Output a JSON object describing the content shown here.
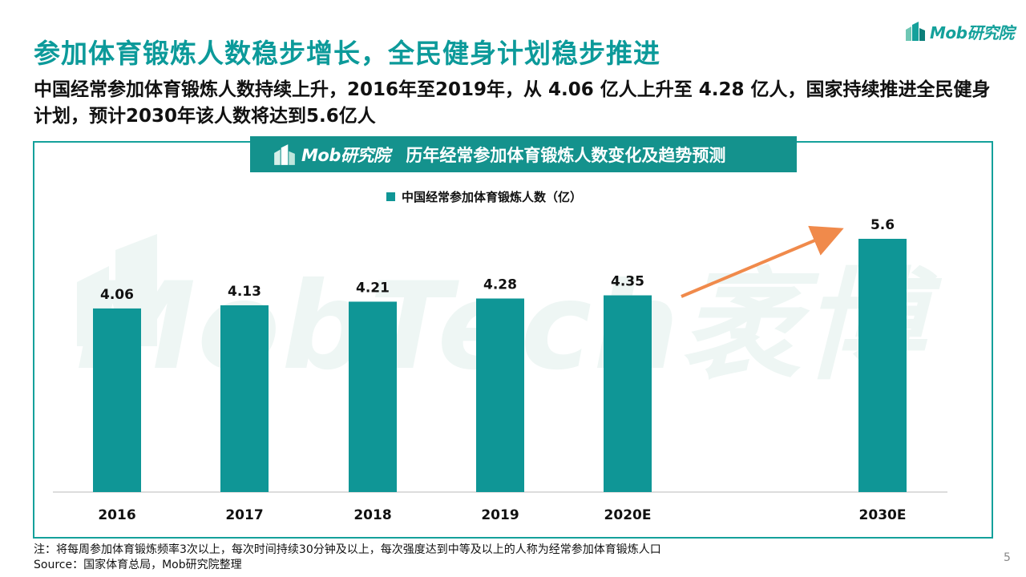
{
  "page": {
    "title": "参加体育锻炼人数稳步增长，全民健身计划稳步推进",
    "subtitle": "中国经常参加体育锻炼人数持续上升，2016年至2019年，从 4.06 亿人上升至 4.28 亿人，国家持续推进全民健身计划，预计2030年该人数将达到5.6亿人",
    "brand": "Mob研究院",
    "page_number": "5",
    "note": "注：将每周参加体育锻炼频率3次以上，每次时间持续30分钟及以上，每次强度达到中等及以上的人称为经常参加体育锻炼人口",
    "source": "Source：国家体育总局，Mob研究院整理",
    "watermark": "MobTech袤博"
  },
  "colors": {
    "accent": "#0c9a9a",
    "bar": "#0f9696",
    "header_bg": "#14928d",
    "trend_arrow": "#f08a4b"
  },
  "chart_data": {
    "type": "bar",
    "title": "历年经常参加体育锻炼人数变化及趋势预测",
    "categories": [
      "2016",
      "2017",
      "2018",
      "2019",
      "2020E",
      "2030E"
    ],
    "series": [
      {
        "name": "中国经常参加体育锻炼人数（亿）",
        "values": [
          4.06,
          4.13,
          4.21,
          4.28,
          4.35,
          5.6
        ]
      }
    ],
    "data_labels": [
      "4.06",
      "4.13",
      "4.21",
      "4.28",
      "4.35",
      "5.6"
    ],
    "ylim": [
      0,
      5.6
    ],
    "grid": false,
    "legend": "top-center",
    "annotation": "trend-arrow from 2020E to 2030E"
  }
}
